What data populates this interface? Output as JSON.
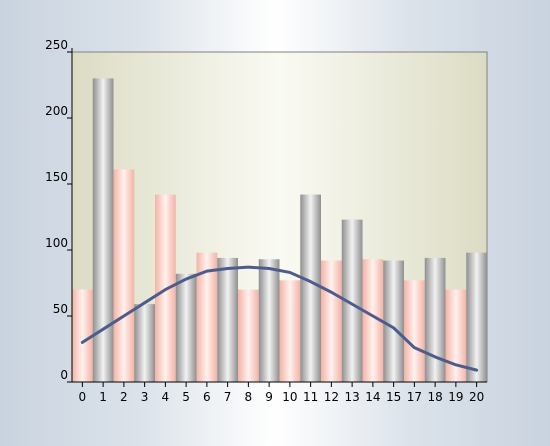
{
  "chart_data": {
    "type": "bar",
    "categories": [
      "0",
      "1",
      "2",
      "3",
      "4",
      "5",
      "6",
      "7",
      "8",
      "9",
      "10",
      "11",
      "12",
      "13",
      "14",
      "15",
      "17",
      "18",
      "19",
      "20"
    ],
    "series": [
      {
        "kind": "bar",
        "values": [
          70,
          230,
          161,
          59,
          142,
          82,
          98,
          94,
          70,
          93,
          77,
          142,
          92,
          123,
          93,
          92,
          77,
          94,
          70,
          98
        ]
      },
      {
        "kind": "line",
        "values": [
          30,
          40,
          50,
          60,
          70,
          78,
          84,
          86,
          87,
          86,
          83,
          76,
          68,
          59,
          50,
          41,
          26,
          19,
          13,
          9
        ]
      }
    ],
    "ylim": [
      0,
      250
    ],
    "yticks": [
      0,
      50,
      100,
      150,
      200,
      250
    ],
    "grid": false,
    "colors": {
      "bar_pink_edge": "#f3b3a6",
      "bar_pink_mid": "#fff1ee",
      "bar_gray_edge": "#8f8f8f",
      "bar_gray_mid": "#f2f2f2",
      "plot_bg_edge": "#dcdcc4",
      "plot_bg_mid": "#fafaf4",
      "line": "#4e5c8c"
    }
  }
}
